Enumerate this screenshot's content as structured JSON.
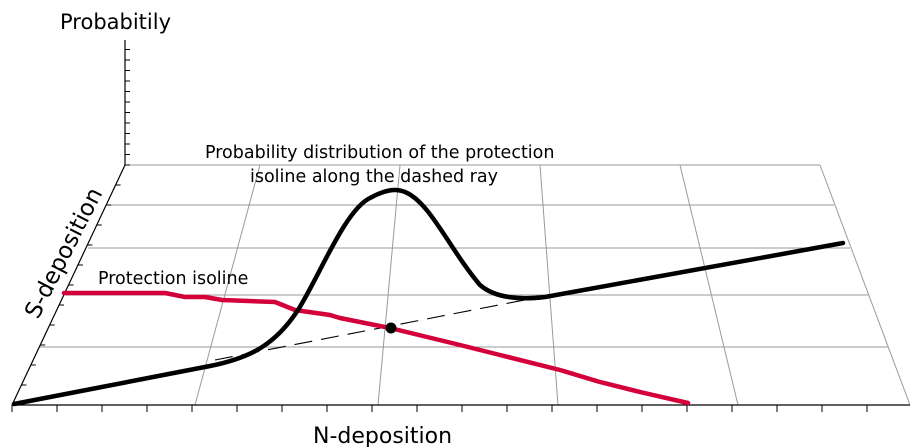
{
  "labels": {
    "z_axis": "Probabitily",
    "y_axis": "S-deposition",
    "x_axis": "N-deposition",
    "annotation_line1": "Probability distribution of the protection",
    "annotation_line2": "isoline along the dashed ray",
    "isoline_label": "Protection isoline"
  },
  "colors": {
    "isoline": "#d4003a",
    "curve": "#000000",
    "grid": "#9a9a9a",
    "axis": "#000000"
  }
}
